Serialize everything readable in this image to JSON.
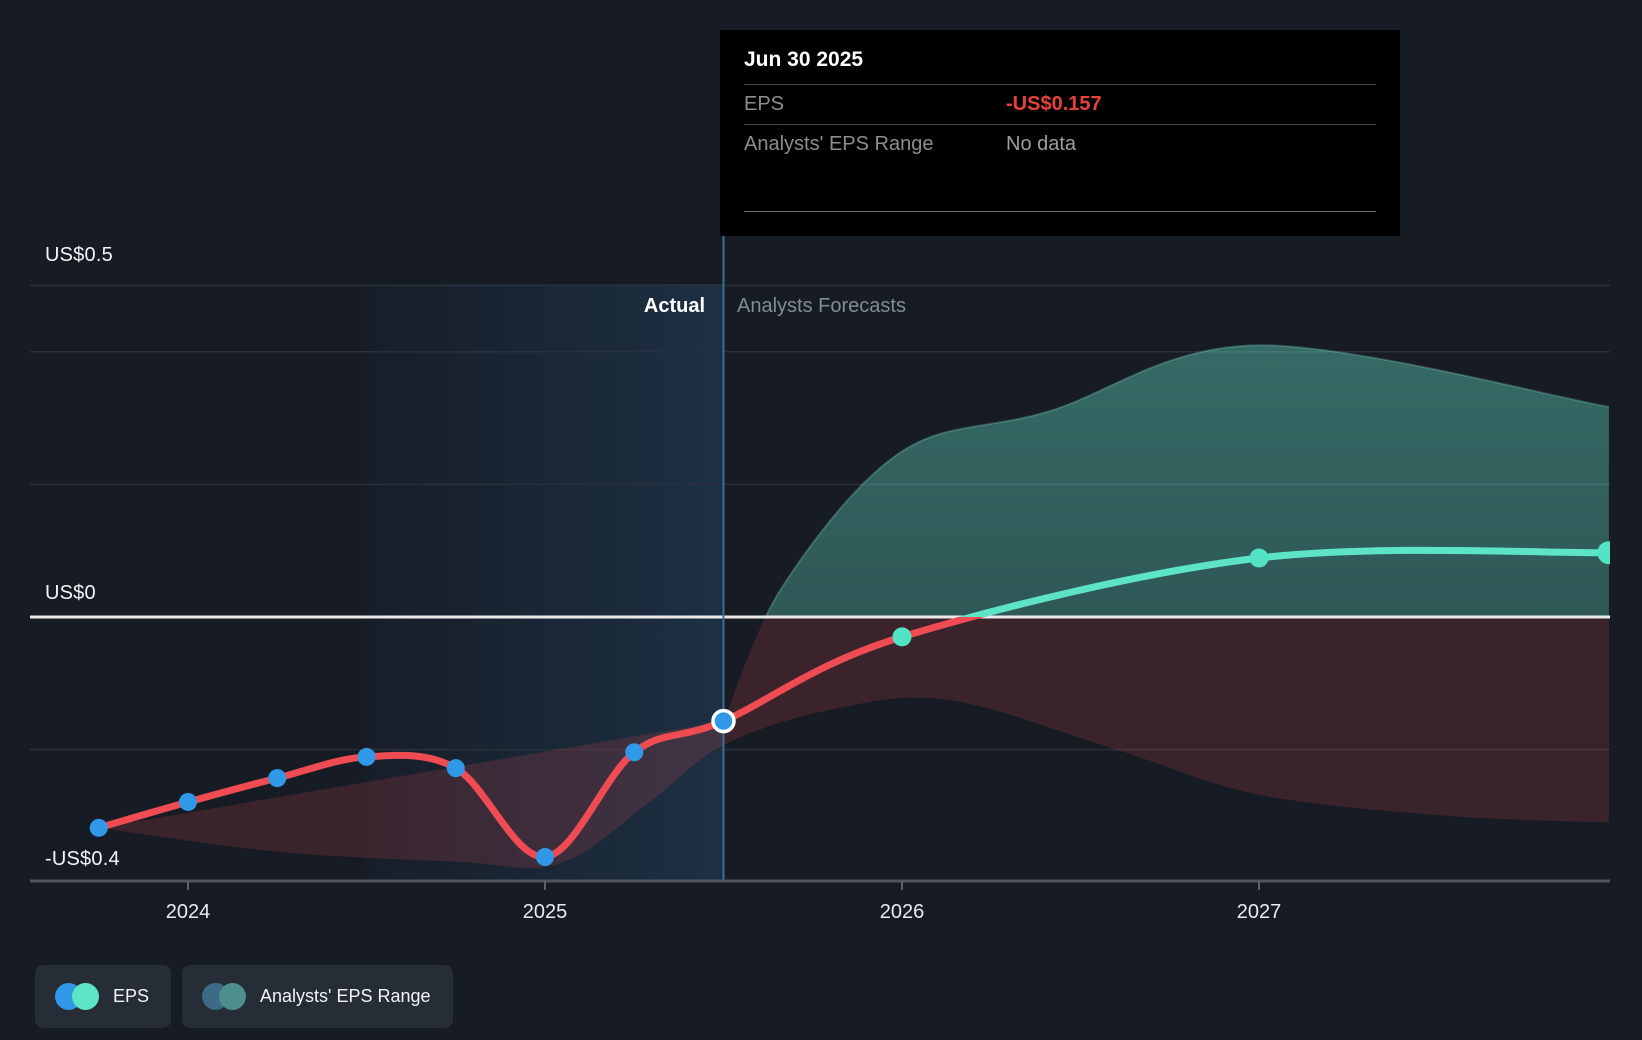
{
  "tooltip": {
    "title": "Jun 30 2025",
    "rows": [
      {
        "label": "EPS",
        "value": "-US$0.157"
      },
      {
        "label": "Analysts' EPS Range",
        "value": "No data"
      }
    ],
    "eps_value_color": "#e8413d"
  },
  "phase_labels": {
    "actual": "Actual",
    "forecast": "Analysts Forecasts"
  },
  "legend": [
    {
      "label": "EPS",
      "colors": [
        "#2f99e8",
        "#5de4c7"
      ]
    },
    {
      "label": "Analysts' EPS Range",
      "colors": [
        "#3d6a85",
        "#4d8f8c"
      ]
    }
  ],
  "chart_data": {
    "type": "line",
    "x_axis": {
      "ticks": [
        2024,
        2025,
        2026,
        2027
      ],
      "tick_labels": [
        "2024",
        "2025",
        "2026",
        "2027"
      ],
      "range": [
        2023.56,
        2027.98
      ]
    },
    "y_axis": {
      "labels": [
        {
          "value": 0.5,
          "text": "US$0.5"
        },
        {
          "value": 0,
          "text": "US$0"
        },
        {
          "value": -0.4,
          "text": "-US$0.4"
        }
      ],
      "gridlines": [
        0.5,
        0.4,
        0.2,
        -0.2
      ],
      "zero_line": 0,
      "range": [
        -0.4,
        0.5
      ]
    },
    "series": [
      {
        "name": "EPS (actual)",
        "line_color_negative": "#ef4b52",
        "marker_color": "#2f99e8",
        "points": [
          [
            2023.75,
            -0.318
          ],
          [
            2024.0,
            -0.279
          ],
          [
            2024.25,
            -0.243
          ],
          [
            2024.5,
            -0.211
          ],
          [
            2024.75,
            -0.228
          ],
          [
            2025.0,
            -0.362
          ],
          [
            2025.25,
            -0.204
          ],
          [
            2025.5,
            -0.157
          ]
        ]
      },
      {
        "name": "EPS (forecast)",
        "line_color_positive": "#5de4c7",
        "marker_color": "#52e2c4",
        "points": [
          [
            2025.5,
            -0.157
          ],
          [
            2026.0,
            -0.03
          ],
          [
            2027.0,
            0.089
          ],
          [
            2027.98,
            0.097
          ]
        ]
      }
    ],
    "range_band": {
      "name": "Analysts' EPS Range",
      "upper": [
        [
          2025.5,
          -0.157
        ],
        [
          2025.67,
          0.05
        ],
        [
          2026.0,
          0.25
        ],
        [
          2026.41,
          0.31
        ],
        [
          2027.0,
          0.41
        ],
        [
          2027.98,
          0.317
        ]
      ],
      "lower": [
        [
          2023.75,
          -0.318
        ],
        [
          2024.25,
          -0.354
        ],
        [
          2024.75,
          -0.369
        ],
        [
          2025.04,
          -0.372
        ],
        [
          2025.3,
          -0.276
        ],
        [
          2025.5,
          -0.193
        ],
        [
          2025.8,
          -0.14
        ],
        [
          2026.13,
          -0.125
        ],
        [
          2026.6,
          -0.2
        ],
        [
          2027.0,
          -0.268
        ],
        [
          2027.53,
          -0.3
        ],
        [
          2027.98,
          -0.31
        ]
      ],
      "color_above": "#66e0c8",
      "color_below": "#ef4b52"
    },
    "divider_x": 2025.5,
    "highlight_span": [
      2024.5,
      2025.5
    ],
    "colors": {
      "background": "#161b24",
      "gridline": "#2a303b",
      "zero_line": "#ece9e9",
      "axis_line": "#50555c",
      "divider": "#3b6f94",
      "actual_dot": "#2f99e8",
      "forecast_dot": "#52e2c4",
      "line_negative": "#ef4b52",
      "line_positive": "#5de4c7"
    }
  }
}
